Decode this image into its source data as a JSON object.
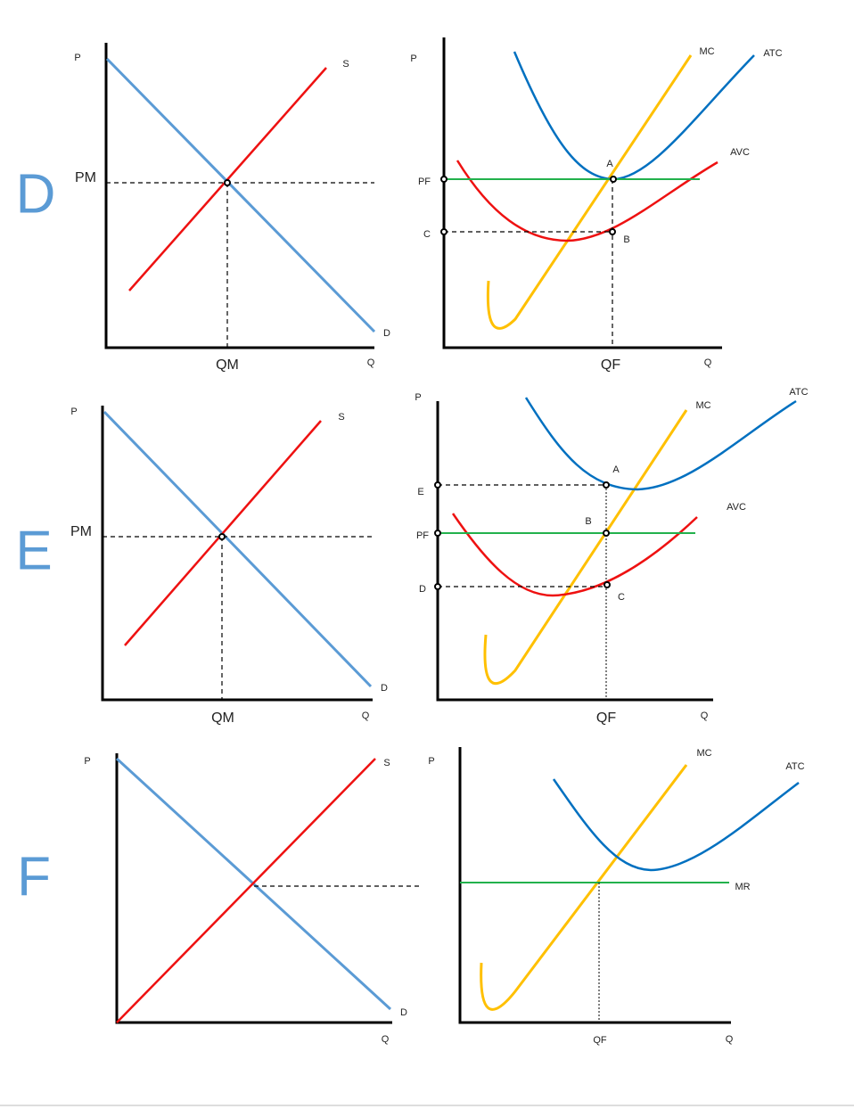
{
  "rows": [
    {
      "letter": "D",
      "market": {
        "p": "P",
        "s": "S",
        "d": "D",
        "q": "Q",
        "pm": "PM",
        "qm": "QM"
      },
      "firm": {
        "p": "P",
        "q": "Q",
        "mc": "MC",
        "atc": "ATC",
        "avc": "AVC",
        "pf": "PF",
        "c": "C",
        "qf": "QF",
        "a": "A",
        "b": "B"
      }
    },
    {
      "letter": "E",
      "market": {
        "p": "P",
        "s": "S",
        "d": "D",
        "q": "Q",
        "pm": "PM",
        "qm": "QM"
      },
      "firm": {
        "p": "P",
        "q": "Q",
        "mc": "MC",
        "atc": "ATC",
        "avc": "AVC",
        "e": "E",
        "pf": "PF",
        "d": "D",
        "qf": "QF",
        "a": "A",
        "b": "B",
        "c": "C"
      }
    },
    {
      "letter": "F",
      "market": {
        "p": "P",
        "s": "S",
        "d": "D",
        "q": "Q"
      },
      "firm": {
        "p": "P",
        "q": "Q",
        "mc": "MC",
        "atc": "ATC",
        "mr": "MR",
        "qf": "QF"
      }
    }
  ]
}
